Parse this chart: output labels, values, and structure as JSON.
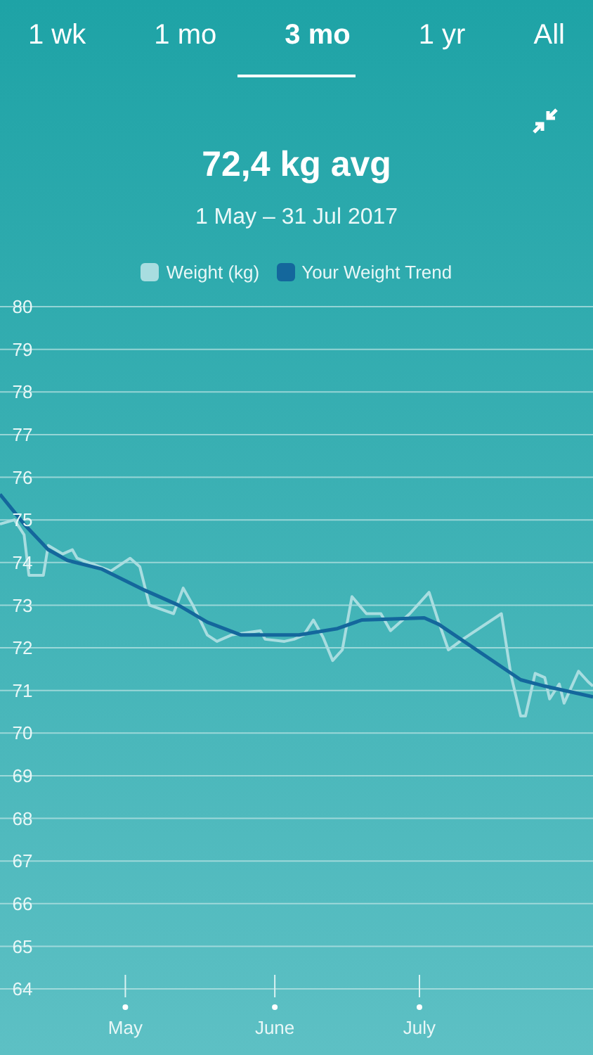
{
  "chart_data": {
    "type": "line",
    "title": "72,4 kg avg",
    "subtitle": "1 May – 31 Jul 2017",
    "annotations": [
      "1 wk",
      "1 mo",
      "3 mo",
      "1 yr",
      "All"
    ],
    "series": [
      {
        "name": "Weight (kg)",
        "color": "#a8dde0",
        "x": [
          "2017-04-05",
          "2017-04-08",
          "2017-04-10",
          "2017-04-11",
          "2017-04-14",
          "2017-04-15",
          "2017-04-18",
          "2017-04-20",
          "2017-04-21",
          "2017-04-28",
          "2017-05-02",
          "2017-05-04",
          "2017-05-06",
          "2017-05-11",
          "2017-05-13",
          "2017-05-15",
          "2017-05-18",
          "2017-05-20",
          "2017-05-23",
          "2017-05-29",
          "2017-05-30",
          "2017-06-03",
          "2017-06-05",
          "2017-06-07",
          "2017-06-09",
          "2017-06-11",
          "2017-06-13",
          "2017-06-15",
          "2017-06-17",
          "2017-06-20",
          "2017-06-23",
          "2017-06-25",
          "2017-06-29",
          "2017-07-03",
          "2017-07-05",
          "2017-07-07",
          "2017-07-10",
          "2017-07-18",
          "2017-07-20",
          "2017-07-22",
          "2017-07-23",
          "2017-07-25",
          "2017-07-27",
          "2017-07-28",
          "2017-07-30",
          "2017-07-31",
          "2017-08-03",
          "2017-08-05",
          "2017-08-06"
        ],
        "values": [
          74.9,
          75.0,
          74.65,
          73.7,
          73.7,
          74.4,
          74.2,
          74.3,
          74.1,
          73.8,
          74.1,
          73.9,
          73.0,
          72.8,
          73.4,
          73.0,
          72.3,
          72.15,
          72.3,
          72.4,
          72.2,
          72.15,
          72.2,
          72.3,
          72.65,
          72.25,
          71.7,
          71.95,
          73.2,
          72.8,
          72.8,
          72.4,
          72.8,
          73.3,
          72.6,
          71.95,
          72.2,
          72.8,
          71.35,
          70.4,
          70.4,
          71.4,
          71.3,
          70.8,
          71.15,
          70.7,
          71.45,
          71.2,
          71.1
        ]
      },
      {
        "name": "Your Weight Trend",
        "color": "#14679c",
        "x": [
          "2017-04-05",
          "2017-04-10",
          "2017-04-15",
          "2017-04-19",
          "2017-04-26",
          "2017-05-05",
          "2017-05-12",
          "2017-05-18",
          "2017-05-25",
          "2017-06-06",
          "2017-06-14",
          "2017-06-19",
          "2017-07-02",
          "2017-07-05",
          "2017-07-22",
          "2017-07-27",
          "2017-08-06"
        ],
        "values": [
          75.6,
          74.9,
          74.3,
          74.05,
          73.85,
          73.35,
          73.0,
          72.6,
          72.3,
          72.3,
          72.45,
          72.65,
          72.7,
          72.55,
          71.25,
          71.1,
          70.85
        ]
      }
    ],
    "xlim": [
      "2017-04-05",
      "2017-08-06"
    ],
    "xticks": [
      {
        "value": "2017-05-01",
        "label": "May"
      },
      {
        "value": "2017-06-01",
        "label": "June"
      },
      {
        "value": "2017-07-01",
        "label": "July"
      }
    ],
    "ylim": [
      64,
      80
    ],
    "yticks": [
      64,
      65,
      66,
      67,
      68,
      69,
      70,
      71,
      72,
      73,
      74,
      75,
      76,
      77,
      78,
      79,
      80
    ],
    "grid": "y",
    "legend": "top",
    "marker": "none",
    "line_style": "solid"
  }
}
